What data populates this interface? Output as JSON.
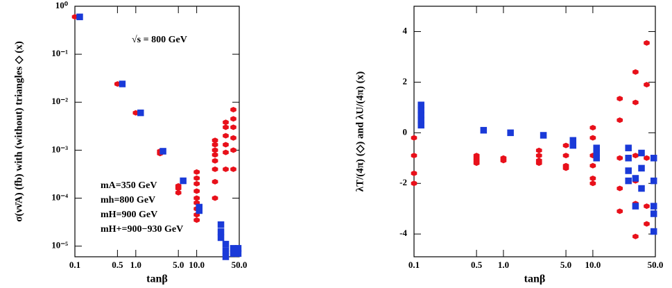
{
  "chart_data": [
    {
      "type": "scatter",
      "x_label": "tanβ",
      "y_label": "σ(νν̄A) (fb) with (without) triangles ◇ (x)",
      "xscale": "log",
      "yscale": "log",
      "xlim": [
        0.1,
        50
      ],
      "ylim": [
        6e-06,
        1
      ],
      "xticks": [
        0.1,
        0.5,
        {
          "value": 1,
          "label": "1.0"
        },
        {
          "value": 5,
          "label": "5.0"
        },
        {
          "value": 10,
          "label": "10.0"
        },
        {
          "value": 50,
          "label": "50.0"
        }
      ],
      "yticks": [
        {
          "value": 1e-05,
          "label": "10⁻⁵"
        },
        {
          "value": 0.0001,
          "label": "10⁻⁴"
        },
        {
          "value": 0.001,
          "label": "10⁻³"
        },
        {
          "value": 0.01,
          "label": "10⁻²"
        },
        {
          "value": 0.1,
          "label": "10⁻¹"
        },
        {
          "value": 1,
          "label": "10⁰"
        }
      ],
      "annotations": [
        "√s = 800 GeV",
        "mA=350 GeV",
        "mh=800 GeV",
        "mH=900 GeV",
        "mH+=900−930 GeV"
      ],
      "series": [
        {
          "color": "#e8101a",
          "marker": "hexagon",
          "x": [
            0.1,
            0.5,
            1,
            2.5,
            2.5,
            5,
            5,
            5,
            10,
            10,
            10,
            10,
            10,
            10,
            10,
            10,
            10,
            20,
            20,
            20,
            20,
            20,
            20,
            20,
            20,
            30,
            30,
            30,
            30,
            30,
            30,
            40,
            40,
            40,
            40,
            40,
            40
          ],
          "values": [
            0.6,
            0.024,
            0.006,
            0.00085,
            0.00095,
            0.00013,
            0.00016,
            0.00018,
            3.5e-05,
            4.5e-05,
            6e-05,
            8e-05,
            0.0001,
            0.00014,
            0.0002,
            0.00026,
            0.00035,
            0.0001,
            0.00022,
            0.0004,
            0.0006,
            0.0008,
            0.001,
            0.0013,
            0.0016,
            0.0004,
            0.0009,
            0.0013,
            0.002,
            0.003,
            0.0038,
            0.0004,
            0.001,
            0.0018,
            0.003,
            0.0045,
            0.007
          ]
        },
        {
          "color": "#1a3ad8",
          "marker": "x",
          "x": [
            0.12,
            0.6,
            1.2,
            2.8,
            6,
            11,
            11,
            25,
            25,
            25,
            30,
            30,
            30,
            40,
            40,
            48,
            48
          ],
          "values": [
            0.6,
            0.024,
            0.006,
            0.00095,
            0.00023,
            5.5e-05,
            6.5e-05,
            1.5e-05,
            2e-05,
            2.8e-05,
            6e-06,
            8e-06,
            1.1e-05,
            7e-06,
            9e-06,
            7e-06,
            9e-06
          ]
        }
      ]
    },
    {
      "type": "scatter",
      "x_label": "tanβ",
      "y_label": "λT/(4π) (◇) and λU/(4π) (x)",
      "xscale": "log",
      "yscale": "linear",
      "xlim": [
        0.1,
        50
      ],
      "ylim": [
        -4.9,
        5
      ],
      "xticks": [
        0.1,
        0.5,
        {
          "value": 1,
          "label": "1.0"
        },
        {
          "value": 5,
          "label": "5.0"
        },
        {
          "value": 10,
          "label": "10.0"
        },
        {
          "value": 50,
          "label": "50.0"
        }
      ],
      "yticks": [
        -4,
        -2,
        0,
        2,
        4
      ],
      "series": [
        {
          "color": "#e8101a",
          "marker": "hexagon",
          "x": [
            0.1,
            0.1,
            0.1,
            0.1,
            0.5,
            0.5,
            0.5,
            0.5,
            1,
            1,
            2.5,
            2.5,
            2.5,
            2.5,
            5,
            5,
            5,
            5,
            10,
            10,
            10,
            10,
            10,
            10,
            20,
            20,
            20,
            20,
            20,
            30,
            30,
            30,
            30,
            30,
            30,
            40,
            40,
            40,
            40,
            40
          ],
          "values": [
            -0.2,
            -0.9,
            -1.6,
            -2,
            -0.9,
            -1,
            -1.1,
            -1.2,
            -1,
            -1.1,
            -0.7,
            -0.9,
            -1.1,
            -1.2,
            -0.5,
            -0.9,
            -1.3,
            -1.4,
            0.2,
            -0.2,
            -0.9,
            -1.3,
            -1.8,
            -2,
            1.35,
            0.5,
            -1,
            -2.2,
            -3.1,
            2.4,
            1.2,
            -0.9,
            -1.9,
            -2.8,
            -4.1,
            3.55,
            1.9,
            -1,
            -2.9,
            -3.6
          ]
        },
        {
          "color": "#1a3ad8",
          "marker": "x",
          "x": [
            0.12,
            0.12,
            0.12,
            0.12,
            0.12,
            0.6,
            1.2,
            2.8,
            6,
            6,
            11,
            11,
            11,
            25,
            25,
            25,
            25,
            30,
            30,
            35,
            35,
            35,
            48,
            48,
            48,
            48,
            48
          ],
          "values": [
            1.1,
            0.9,
            0.7,
            0.5,
            0.3,
            0.1,
            0,
            -0.1,
            -0.3,
            -0.5,
            -0.6,
            -0.8,
            -1,
            -0.6,
            -1,
            -1.5,
            -1.9,
            -2.9,
            -1.8,
            -1.4,
            -2.2,
            -0.8,
            -1,
            -1.9,
            -2.9,
            -3.2,
            -3.9
          ]
        }
      ]
    }
  ]
}
